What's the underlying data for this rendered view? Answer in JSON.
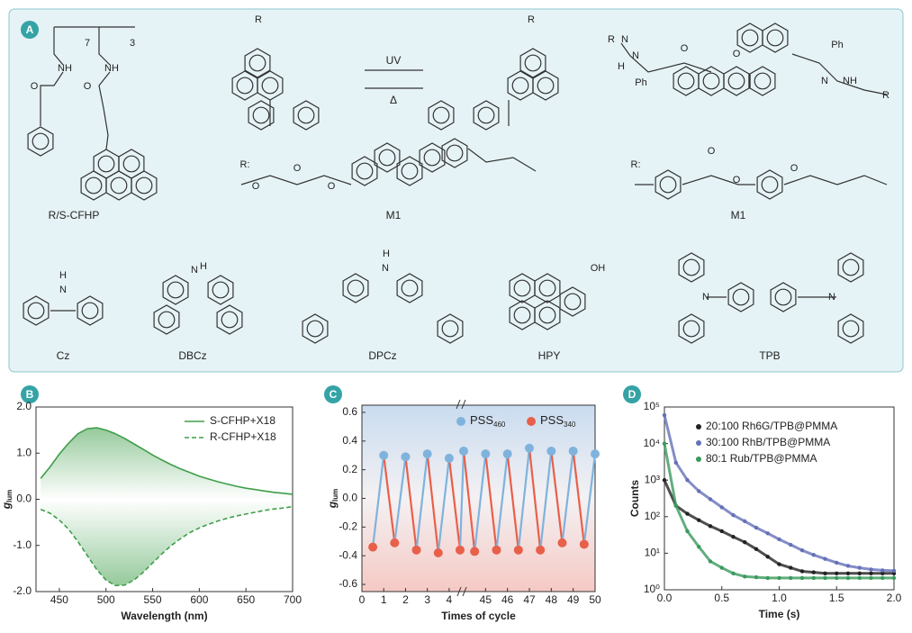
{
  "panel_a": {
    "label": "A",
    "names": [
      "R/S-CFHP",
      "M1",
      "M1",
      "Cz",
      "DBCz",
      "DPCz",
      "HPY",
      "TPB"
    ],
    "arrows": [
      "UV",
      "Δ"
    ],
    "atom_labels": [
      "7",
      "3",
      "NH",
      "NH",
      "O",
      "O",
      "R",
      "R",
      "R:",
      "O",
      "O",
      "O",
      "R",
      "N",
      "N",
      "H",
      "Ph",
      "O",
      "O",
      "Ph",
      "N",
      "NH",
      "R",
      "R:",
      "O",
      "O",
      "O",
      "H",
      "N",
      "H",
      "N",
      "H",
      "N",
      "OH",
      "N",
      "N"
    ]
  },
  "chart_data": [
    {
      "type": "line",
      "label": "B",
      "x_label": "Wavelength (nm)",
      "y_label": "g",
      "y_label_sub": "lum",
      "x": [
        430,
        440,
        450,
        460,
        470,
        480,
        490,
        500,
        510,
        520,
        530,
        540,
        550,
        560,
        570,
        580,
        590,
        600,
        610,
        620,
        630,
        640,
        650,
        660,
        670,
        680,
        690,
        700
      ],
      "series": [
        {
          "name": "S-CFHP+X18",
          "color": "#3f9e4a",
          "style": "solid",
          "values": [
            0.45,
            0.7,
            0.98,
            1.22,
            1.42,
            1.53,
            1.55,
            1.5,
            1.42,
            1.32,
            1.2,
            1.08,
            0.96,
            0.85,
            0.75,
            0.66,
            0.58,
            0.5,
            0.44,
            0.38,
            0.33,
            0.28,
            0.24,
            0.21,
            0.18,
            0.15,
            0.13,
            0.11
          ]
        },
        {
          "name": "R-CFHP+X18",
          "color": "#3f9e4a",
          "style": "dashed",
          "values": [
            -0.22,
            -0.3,
            -0.45,
            -0.65,
            -0.92,
            -1.22,
            -1.52,
            -1.75,
            -1.87,
            -1.86,
            -1.75,
            -1.58,
            -1.38,
            -1.18,
            -1.0,
            -0.85,
            -0.72,
            -0.62,
            -0.54,
            -0.47,
            -0.41,
            -0.36,
            -0.32,
            -0.28,
            -0.24,
            -0.21,
            -0.19,
            -0.16
          ]
        }
      ],
      "xlim": [
        425,
        700
      ],
      "xticks": [
        450,
        500,
        550,
        600,
        650,
        700
      ],
      "ylim": [
        -2,
        2
      ],
      "yticks": [
        {
          "value": -2,
          "label": "-2.0"
        },
        {
          "value": -1,
          "label": "-1.0"
        },
        {
          "value": 0,
          "label": "0.0"
        },
        {
          "value": 1,
          "label": "1.0"
        },
        {
          "value": 2,
          "label": "2.0"
        }
      ],
      "legend": "upper right"
    },
    {
      "type": "zigzag",
      "label": "C",
      "x_label": "Times of cycle",
      "y_label": "g",
      "y_label_sub": "lum",
      "series": [
        {
          "name": "PSS",
          "name_sub": "460",
          "color": "#7fb3dd",
          "x": [
            1,
            2,
            3,
            4,
            44,
            45,
            46,
            47,
            48,
            49,
            50
          ],
          "values": [
            0.3,
            0.29,
            0.31,
            0.28,
            0.33,
            0.31,
            0.31,
            0.35,
            0.33,
            0.33,
            0.31
          ]
        },
        {
          "name": "PSS",
          "name_sub": "340",
          "color": "#e8604a",
          "x": [
            0.5,
            1.5,
            2.5,
            3.5,
            4.5,
            44.5,
            45.5,
            46.5,
            47.5,
            48.5,
            49.5
          ],
          "values": [
            -0.34,
            -0.31,
            -0.36,
            -0.38,
            -0.36,
            -0.37,
            -0.36,
            -0.36,
            -0.36,
            -0.31,
            -0.32
          ]
        }
      ],
      "xlim": [
        0,
        50
      ],
      "x_break": [
        4.5,
        44
      ],
      "xticks": [
        0,
        1,
        2,
        3,
        4,
        45,
        46,
        47,
        48,
        49,
        50
      ],
      "ylim": [
        -0.65,
        0.65
      ],
      "yticks": [
        -0.6,
        -0.4,
        -0.2,
        {
          "value": 0,
          "label": "0.0"
        },
        0.2,
        0.4,
        0.6
      ],
      "legend": "upper center"
    },
    {
      "type": "scatter",
      "label": "D",
      "x_label": "Time (s)",
      "y_label": "Counts",
      "y_log": true,
      "x": [
        0,
        0.1,
        0.2,
        0.3,
        0.4,
        0.5,
        0.6,
        0.7,
        0.8,
        0.9,
        1.0,
        1.1,
        1.2,
        1.3,
        1.4,
        1.5,
        1.6,
        1.7,
        1.8,
        1.9,
        2.0
      ],
      "series": [
        {
          "name": "20:100 Rh6G/TPB@PMMA",
          "color": "#222222",
          "values": [
            1000,
            200,
            120,
            80,
            55,
            40,
            28,
            20,
            13,
            8,
            5,
            4,
            3.2,
            3,
            2.8,
            2.8,
            2.8,
            2.8,
            2.8,
            2.8,
            2.8
          ]
        },
        {
          "name": "30:100 RhB/TPB@PMMA",
          "color": "#6470b8",
          "values": [
            60000,
            3000,
            1000,
            500,
            300,
            180,
            110,
            75,
            50,
            35,
            24,
            17,
            12,
            9,
            7,
            5.5,
            4.5,
            4,
            3.6,
            3.4,
            3.3
          ]
        },
        {
          "name": "80:1 Rub/TPB@PMMA",
          "color": "#3a9a5c",
          "values": [
            10000,
            200,
            40,
            15,
            6,
            4,
            2.8,
            2.3,
            2.2,
            2.1,
            2.1,
            2.1,
            2.1,
            2.1,
            2.1,
            2.1,
            2.1,
            2.1,
            2.1,
            2.1,
            2.1
          ]
        }
      ],
      "xlim": [
        0,
        2
      ],
      "xticks": [
        {
          "value": 0,
          "label": "0.0"
        },
        0.5,
        {
          "value": 1,
          "label": "1.0"
        },
        1.5,
        {
          "value": 2,
          "label": "2.0"
        }
      ],
      "ylim": [
        1,
        100000
      ],
      "yticks": [
        {
          "value": 1,
          "label": "10⁰"
        },
        {
          "value": 10,
          "label": "10¹"
        },
        {
          "value": 100,
          "label": "10²"
        },
        {
          "value": 1000,
          "label": "10³"
        },
        {
          "value": 10000,
          "label": "10⁴"
        },
        {
          "value": 100000,
          "label": "10⁵"
        }
      ],
      "legend": "upper left"
    }
  ]
}
